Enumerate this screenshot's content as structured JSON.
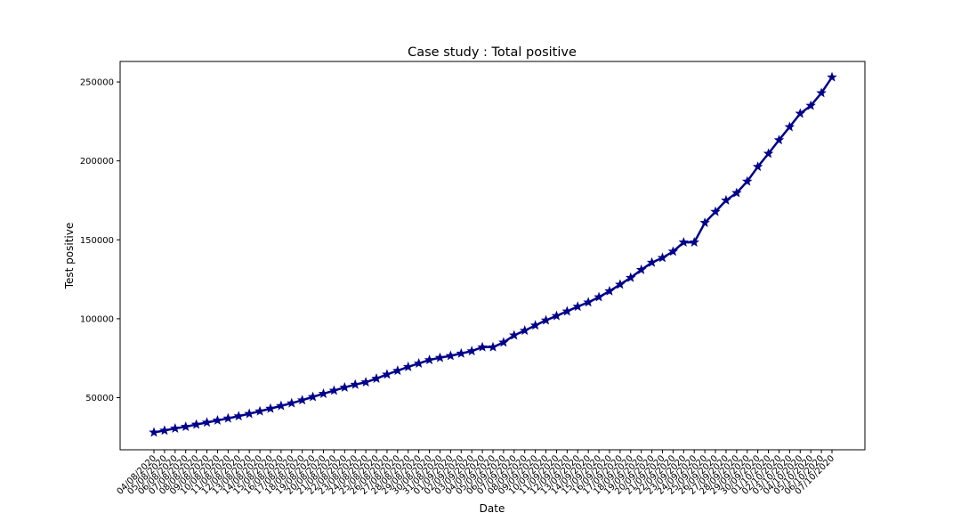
{
  "chart_data": {
    "type": "line",
    "title": "Case study : Total positive",
    "xlabel": "Date",
    "ylabel": "Test positive",
    "grid": false,
    "color": "#00008b",
    "marker": "star",
    "yticks": [
      50000,
      100000,
      150000,
      200000,
      250000
    ],
    "ytick_labels": [
      "50000",
      "100000",
      "150000",
      "200000",
      "250000"
    ],
    "ylim": [
      17000,
      263000
    ],
    "categories": [
      "04/08/2020",
      "05/08/2020",
      "06/08/2020",
      "07/08/2020",
      "08/08/2020",
      "09/08/2020",
      "10/08/2020",
      "11/08/2020",
      "12/08/2020",
      "13/08/2020",
      "14/08/2020",
      "15/08/2020",
      "16/08/2020",
      "17/08/2020",
      "18/08/2020",
      "19/08/2020",
      "20/08/2020",
      "21/08/2020",
      "22/08/2020",
      "23/08/2020",
      "24/08/2020",
      "25/08/2020",
      "26/08/2020",
      "27/08/2020",
      "28/08/2020",
      "29/08/2020",
      "30/08/2020",
      "31/08/2020",
      "01/09/2020",
      "02/09/2020",
      "03/09/2020",
      "04/09/2020",
      "05/09/2020",
      "06/09/2020",
      "07/09/2020",
      "08/09/2020",
      "09/09/2020",
      "10/09/2020",
      "11/09/2020",
      "12/09/2020",
      "13/09/2020",
      "14/09/2020",
      "15/09/2020",
      "16/09/2020",
      "17/09/2020",
      "18/09/2020",
      "19/09/2020",
      "20/09/2020",
      "21/09/2020",
      "22/09/2020",
      "23/09/2020",
      "24/09/2020",
      "25/09/2020",
      "26/09/2020",
      "27/09/2020",
      "28/09/2020",
      "29/09/2020",
      "30/09/2020",
      "01/10/2020",
      "02/10/2020",
      "03/10/2020",
      "04/10/2020",
      "05/10/2020",
      "06/10/2020",
      "07/10/2020"
    ],
    "series": [
      {
        "values": [
          28000,
          29200,
          30500,
          31600,
          33000,
          34300,
          35600,
          36900,
          38300,
          39800,
          41400,
          43100,
          44800,
          46500,
          48400,
          50500,
          52500,
          54500,
          56500,
          58300,
          59800,
          62100,
          64700,
          67100,
          69500,
          71700,
          73900,
          75300,
          76500,
          78000,
          79500,
          82000,
          82000,
          85000,
          89500,
          92500,
          95800,
          99000,
          101800,
          104700,
          107700,
          110400,
          113700,
          117500,
          121700,
          126000,
          131000,
          135600,
          138600,
          142600,
          148400,
          148400,
          160800,
          167800,
          175000,
          179700,
          187000,
          196300,
          204600,
          213200,
          221500,
          230000,
          235000,
          243000,
          253000
        ]
      }
    ]
  }
}
